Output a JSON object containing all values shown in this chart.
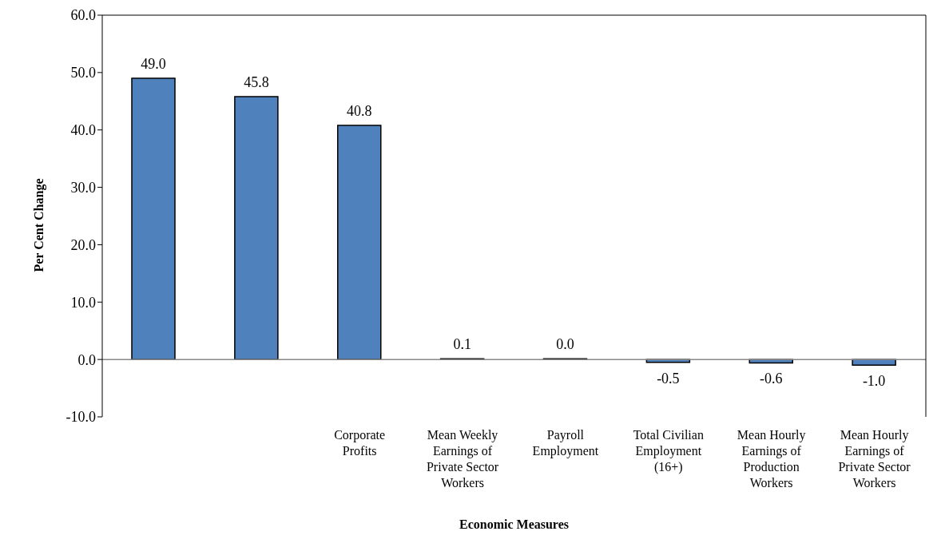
{
  "chart_data": {
    "type": "bar",
    "xlabel": "Economic Measures",
    "ylabel": "Per Cent Change",
    "categories": [
      null,
      null,
      "Corporate Profits",
      "Mean Weekly Earnings of Private Sector Workers",
      "Payroll Employment",
      "Total Civilian Employment (16+)",
      "Mean Hourly Earnings of Production Workers",
      "Mean Hourly Earnings of Private Sector Workers"
    ],
    "values": [
      49.0,
      45.8,
      40.8,
      0.1,
      0.0,
      -0.5,
      -0.6,
      -1.0
    ],
    "value_labels": [
      "49.0",
      "45.8",
      "40.8",
      "0.1",
      "0.0",
      "-0.5",
      "-0.6",
      "-1.0"
    ],
    "color": "#4f81bd",
    "ylim": [
      -10,
      60
    ],
    "yticks": [
      {
        "value": -10,
        "label": "-10.0"
      },
      {
        "value": 0,
        "label": "0.0"
      },
      {
        "value": 10,
        "label": "10.0"
      },
      {
        "value": 20,
        "label": "20.0"
      },
      {
        "value": 30,
        "label": "30.0"
      },
      {
        "value": 40,
        "label": "40.0"
      },
      {
        "value": 50,
        "label": "50.0"
      },
      {
        "value": 60,
        "label": "60.0"
      }
    ],
    "ref_lines": [
      {
        "axis": "y",
        "value": 0,
        "color": "#888888"
      }
    ],
    "grid": false,
    "legend": false
  }
}
